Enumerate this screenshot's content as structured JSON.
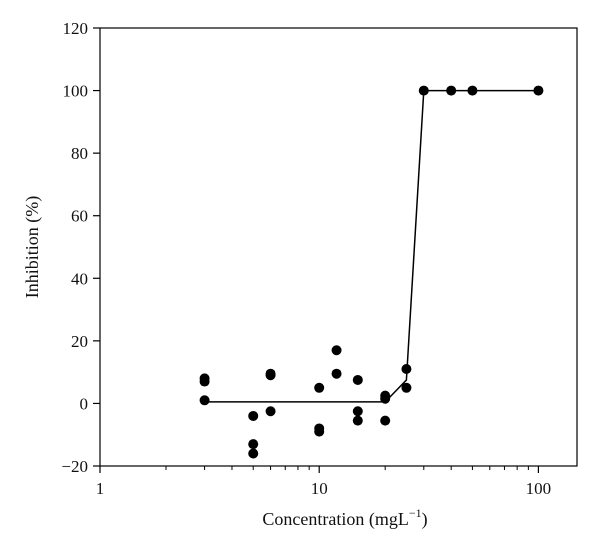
{
  "chart_data": {
    "type": "scatter",
    "xlabel": "Concentration (mgL",
    "xlabel_superscript": "−1",
    "xlabel_close": ")",
    "ylabel": "Inhibition (%)",
    "x_scale": "log",
    "xlim": [
      1,
      150
    ],
    "ylim": [
      -20,
      120
    ],
    "x_ticks": [
      1,
      10,
      100
    ],
    "x_tick_labels": [
      "1",
      "10",
      "100"
    ],
    "y_ticks": [
      -20,
      0,
      20,
      40,
      60,
      80,
      100,
      120
    ],
    "y_tick_labels": [
      "−20",
      "0",
      "20",
      "40",
      "60",
      "80",
      "100",
      "120"
    ],
    "grid": false,
    "marker_color": "#000000",
    "line_color": "#000000",
    "series": [
      {
        "kind": "points",
        "x": [
          3,
          3,
          3,
          5,
          5,
          5,
          6,
          6,
          6,
          10,
          10,
          10,
          12,
          12,
          15,
          15,
          15,
          20,
          20,
          20,
          25,
          25,
          30,
          40,
          50,
          100
        ],
        "y": [
          8,
          7,
          1,
          -4,
          -13,
          -16,
          9.5,
          9,
          -2.5,
          5,
          -8,
          -9,
          17,
          9.5,
          7.5,
          -2.5,
          -5.5,
          2.5,
          1.5,
          -5.5,
          11,
          5,
          100,
          100,
          100,
          100
        ]
      },
      {
        "kind": "line",
        "x": [
          3,
          20,
          25,
          30,
          100
        ],
        "y": [
          0.5,
          0.5,
          7.5,
          100,
          100
        ]
      }
    ]
  }
}
